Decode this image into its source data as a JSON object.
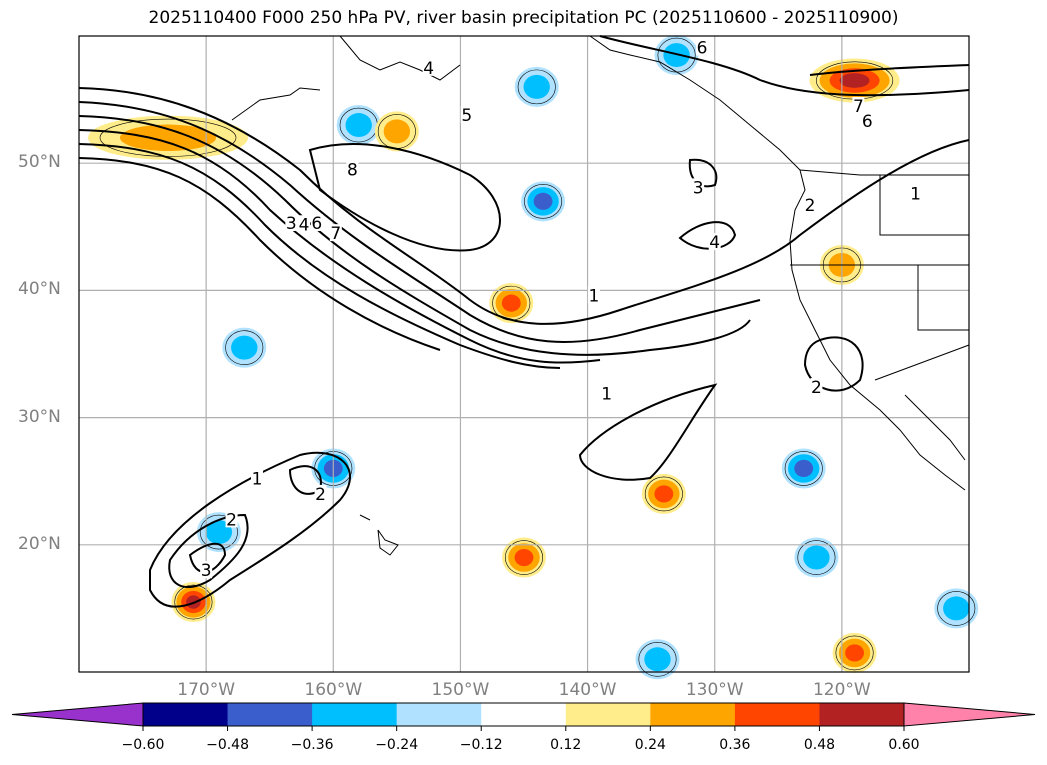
{
  "title": "2025110400 F000 250 hPa PV, river basin precipitation PC (2025110600 - 2025110900)",
  "map": {
    "projection": "plate carree",
    "extent_lon": [
      -180,
      -110
    ],
    "extent_lat": [
      10,
      60
    ],
    "lat_labels": [
      "50°N",
      "40°N",
      "30°N",
      "20°N"
    ],
    "lat_values": [
      50,
      40,
      30,
      20
    ],
    "lon_labels": [
      "170°W",
      "160°W",
      "150°W",
      "140°W",
      "130°W",
      "120°W"
    ],
    "lon_values": [
      -170,
      -160,
      -150,
      -140,
      -130,
      -120
    ],
    "gridline_color": "#b0b0b0",
    "contour_variable": "250 hPa PV",
    "contour_labels": [
      {
        "text": "4",
        "lon": -152.5,
        "lat": 57.5
      },
      {
        "text": "5",
        "lon": -149.5,
        "lat": 53.8
      },
      {
        "text": "8",
        "lon": -158.5,
        "lat": 49.5
      },
      {
        "text": "3",
        "lon": -163.3,
        "lat": 45.3
      },
      {
        "text": "4",
        "lon": -162.3,
        "lat": 45.2
      },
      {
        "text": "6",
        "lon": -161.3,
        "lat": 45.3
      },
      {
        "text": "7",
        "lon": -159.8,
        "lat": 44.5
      },
      {
        "text": "6",
        "lon": -131.0,
        "lat": 59.1
      },
      {
        "text": "7",
        "lon": -118.7,
        "lat": 54.5
      },
      {
        "text": "6",
        "lon": -118.0,
        "lat": 53.3
      },
      {
        "text": "3",
        "lon": -131.3,
        "lat": 48.1
      },
      {
        "text": "4",
        "lon": -130.0,
        "lat": 43.8
      },
      {
        "text": "2",
        "lon": -122.5,
        "lat": 46.7
      },
      {
        "text": "1",
        "lon": -114.2,
        "lat": 47.6
      },
      {
        "text": "1",
        "lon": -139.5,
        "lat": 39.6
      },
      {
        "text": "1",
        "lon": -138.5,
        "lat": 31.9
      },
      {
        "text": "2",
        "lon": -122.0,
        "lat": 32.4
      },
      {
        "text": "1",
        "lon": -166.0,
        "lat": 25.2
      },
      {
        "text": "2",
        "lon": -161.0,
        "lat": 24.0
      },
      {
        "text": "2",
        "lon": -168.0,
        "lat": 22.0
      },
      {
        "text": "3",
        "lon": -170.0,
        "lat": 18.0
      }
    ]
  },
  "colorbar": {
    "ticks": [
      "−0.60",
      "−0.48",
      "−0.36",
      "−0.24",
      "−0.12",
      "0.12",
      "0.24",
      "0.36",
      "0.48",
      "0.60"
    ],
    "tick_values": [
      -0.6,
      -0.48,
      -0.36,
      -0.24,
      -0.12,
      0.12,
      0.24,
      0.36,
      0.48,
      0.6
    ],
    "colors": [
      "#9932cc",
      "#00008b",
      "#3a5fcd",
      "#00bfff",
      "#b0e2ff",
      "#ffffff",
      "#ffec8b",
      "#ffa500",
      "#ff4500",
      "#b22222",
      "#ff82ab"
    ],
    "extend": "both"
  },
  "chart_data": {
    "type": "heatmap",
    "title": "2025110400 F000 250 hPa PV, river basin precipitation PC (2025110600 - 2025110900)",
    "xlabel": "",
    "ylabel": "",
    "xlim": [
      -180,
      -110
    ],
    "ylim": [
      10,
      60
    ],
    "legend": "bottom colorbar",
    "grid": true,
    "shaded_features": [
      {
        "name": "positive PC NW Pacific",
        "lon": -173,
        "lat": 52,
        "value": 0.3
      },
      {
        "name": "negative PC Aleutians",
        "lon": -158,
        "lat": 53,
        "value": -0.3
      },
      {
        "name": "positive PC small",
        "lon": -155,
        "lat": 52.5,
        "value": 0.28
      },
      {
        "name": "negative PC Gulf Alaska",
        "lon": -144,
        "lat": 56,
        "value": -0.3
      },
      {
        "name": "negative PC dipole",
        "lon": -143.5,
        "lat": 47,
        "value": -0.45
      },
      {
        "name": "positive PC 40N",
        "lon": -146,
        "lat": 39,
        "value": 0.38
      },
      {
        "name": "positive PC Canada",
        "lon": -119,
        "lat": 56.5,
        "value": 0.5
      },
      {
        "name": "negative PC N corner",
        "lon": -133,
        "lat": 58.5,
        "value": -0.3
      },
      {
        "name": "positive PC California",
        "lon": -120,
        "lat": 42,
        "value": 0.3
      },
      {
        "name": "negative PC 35N",
        "lon": -167,
        "lat": 35.5,
        "value": -0.3
      },
      {
        "name": "negative PC Hawaii N",
        "lon": -160,
        "lat": 26,
        "value": -0.45
      },
      {
        "name": "negative PC 22N",
        "lon": -169,
        "lat": 21,
        "value": -0.3
      },
      {
        "name": "positive PC SW",
        "lon": -171,
        "lat": 15.5,
        "value": 0.5
      },
      {
        "name": "negative PC 26N",
        "lon": -123,
        "lat": 26,
        "value": -0.45
      },
      {
        "name": "positive PC 24N",
        "lon": -134,
        "lat": 24,
        "value": 0.38
      },
      {
        "name": "positive PC 19N",
        "lon": -145,
        "lat": 19,
        "value": 0.38
      },
      {
        "name": "negative PC 19N",
        "lon": -122,
        "lat": 19,
        "value": -0.3
      },
      {
        "name": "negative PC SE",
        "lon": -111,
        "lat": 15,
        "value": -0.3
      },
      {
        "name": "positive PC SE",
        "lon": -119,
        "lat": 11.5,
        "value": 0.38
      },
      {
        "name": "negative PC S",
        "lon": -134.5,
        "lat": 11,
        "value": -0.3
      }
    ]
  }
}
